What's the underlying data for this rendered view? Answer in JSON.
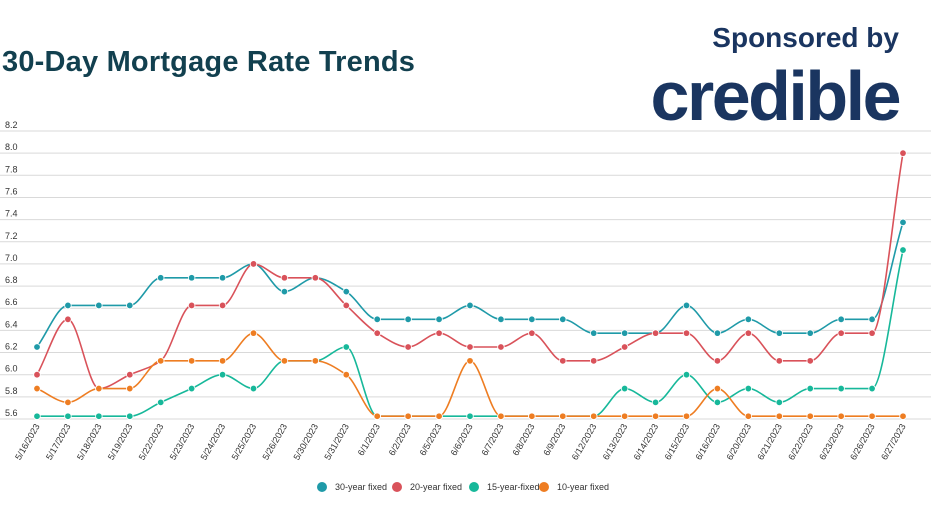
{
  "header": {
    "title": "30-Day Mortgage Rate Trends",
    "sponsor_text": "Sponsored by",
    "brand": "credible"
  },
  "colors": {
    "title": "#12404f",
    "brand": "#1a3560",
    "grid": "#d9d9d9"
  },
  "chart_data": {
    "type": "line",
    "title": "30-Day Mortgage Rate Trends",
    "xlabel": "",
    "ylabel": "",
    "ylim": [
      5.6,
      8.2
    ],
    "y_ticks": [
      "5.6",
      "5.8",
      "6.0",
      "6.2",
      "6.4",
      "6.6",
      "6.8",
      "7.0",
      "7.2",
      "7.4",
      "7.6",
      "7.8",
      "8.0",
      "8.2"
    ],
    "grid": true,
    "legend_position": "bottom",
    "categories": [
      "5/16/2023",
      "5/17/2023",
      "5/18/2023",
      "5/19/2023",
      "5/22/2023",
      "5/23/2023",
      "5/24/2023",
      "5/25/2023",
      "5/26/2023",
      "5/30/2023",
      "5/31/2023",
      "6/1/2023",
      "6/2/2023",
      "6/5/2023",
      "6/6/2023",
      "6/7/2023",
      "6/8/2023",
      "6/9/2023",
      "6/12/2023",
      "6/13/2023",
      "6/14/2023",
      "6/15/2023",
      "6/16/2023",
      "6/20/2023",
      "6/21/2023",
      "6/22/2023",
      "6/23/2023",
      "6/26/2023",
      "6/27/2023"
    ],
    "series": [
      {
        "name": "30-year fixed",
        "color": "#1f9aa8",
        "values": [
          6.25,
          6.625,
          6.625,
          6.625,
          6.875,
          6.875,
          6.875,
          7.0,
          6.75,
          6.875,
          6.75,
          6.5,
          6.5,
          6.5,
          6.625,
          6.5,
          6.5,
          6.5,
          6.375,
          6.375,
          6.375,
          6.625,
          6.375,
          6.5,
          6.375,
          6.375,
          6.5,
          6.5,
          7.375
        ]
      },
      {
        "name": "20-year fixed",
        "color": "#d9525a",
        "values": [
          6.0,
          6.5,
          5.875,
          6.0,
          6.125,
          6.625,
          6.625,
          7.0,
          6.875,
          6.875,
          6.625,
          6.375,
          6.25,
          6.375,
          6.25,
          6.25,
          6.375,
          6.125,
          6.125,
          6.25,
          6.375,
          6.375,
          6.125,
          6.375,
          6.125,
          6.125,
          6.375,
          6.375,
          8.0
        ]
      },
      {
        "name": "15-year-fixed",
        "color": "#17b89a",
        "values": [
          5.625,
          5.625,
          5.625,
          5.625,
          5.75,
          5.875,
          6.0,
          5.875,
          6.125,
          6.125,
          6.25,
          5.625,
          5.625,
          5.625,
          5.625,
          5.625,
          5.625,
          5.625,
          5.625,
          5.875,
          5.75,
          6.0,
          5.75,
          5.875,
          5.75,
          5.875,
          5.875,
          5.875,
          7.125
        ]
      },
      {
        "name": "10-year fixed",
        "color": "#ee7d22",
        "values": [
          5.875,
          5.75,
          5.875,
          5.875,
          6.125,
          6.125,
          6.125,
          6.375,
          6.125,
          6.125,
          6.0,
          5.625,
          5.625,
          5.625,
          6.125,
          5.625,
          5.625,
          5.625,
          5.625,
          5.625,
          5.625,
          5.625,
          5.875,
          5.625,
          5.625,
          5.625,
          5.625,
          5.625,
          5.625
        ]
      }
    ]
  }
}
